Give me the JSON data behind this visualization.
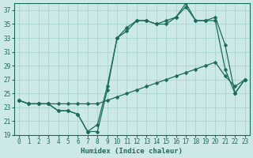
{
  "xlabel": "Humidex (Indice chaleur)",
  "bg_color": "#cde8e8",
  "line_color": "#1a6b5a",
  "grid_color": "#aad4d4",
  "ylim": [
    19,
    38
  ],
  "xlim": [
    -0.5,
    23.5
  ],
  "yticks": [
    19,
    21,
    23,
    25,
    27,
    29,
    31,
    33,
    35,
    37
  ],
  "xticks": [
    0,
    1,
    2,
    3,
    4,
    5,
    6,
    7,
    8,
    9,
    10,
    11,
    12,
    13,
    14,
    15,
    16,
    17,
    18,
    19,
    20,
    21,
    22,
    23
  ],
  "line1_x": [
    0,
    1,
    2,
    3,
    4,
    5,
    6,
    7,
    8,
    9,
    10,
    11,
    12,
    13,
    14,
    15,
    16,
    17,
    18,
    19,
    20,
    21,
    22,
    23
  ],
  "line1_y": [
    24.0,
    23.5,
    23.5,
    23.5,
    22.5,
    22.5,
    22.0,
    19.5,
    20.5,
    26.0,
    33.0,
    34.5,
    35.5,
    35.5,
    35.0,
    35.5,
    36.0,
    37.5,
    35.5,
    35.5,
    36.0,
    32.0,
    25.0,
    27.0
  ],
  "line2_x": [
    0,
    1,
    2,
    3,
    4,
    5,
    6,
    7,
    8,
    9,
    10,
    11,
    12,
    13,
    14,
    15,
    16,
    17,
    18,
    19,
    20,
    21,
    22,
    23
  ],
  "line2_y": [
    24.0,
    23.5,
    23.5,
    23.5,
    22.5,
    22.5,
    22.0,
    19.5,
    19.5,
    25.5,
    33.0,
    34.0,
    35.5,
    35.5,
    35.0,
    35.0,
    36.0,
    38.0,
    35.5,
    35.5,
    35.5,
    28.5,
    25.0,
    27.0
  ],
  "line3_x": [
    0,
    1,
    2,
    3,
    4,
    5,
    6,
    7,
    8,
    9,
    10,
    11,
    12,
    13,
    14,
    15,
    16,
    17,
    18,
    19,
    20,
    21,
    22,
    23
  ],
  "line3_y": [
    24.0,
    23.5,
    23.5,
    23.5,
    23.5,
    23.5,
    23.5,
    23.5,
    23.5,
    24.0,
    24.5,
    25.0,
    25.5,
    26.0,
    26.5,
    27.0,
    27.5,
    28.0,
    28.5,
    29.0,
    29.5,
    27.5,
    26.0,
    27.0
  ],
  "marker_size": 2.5,
  "linewidth": 0.9
}
